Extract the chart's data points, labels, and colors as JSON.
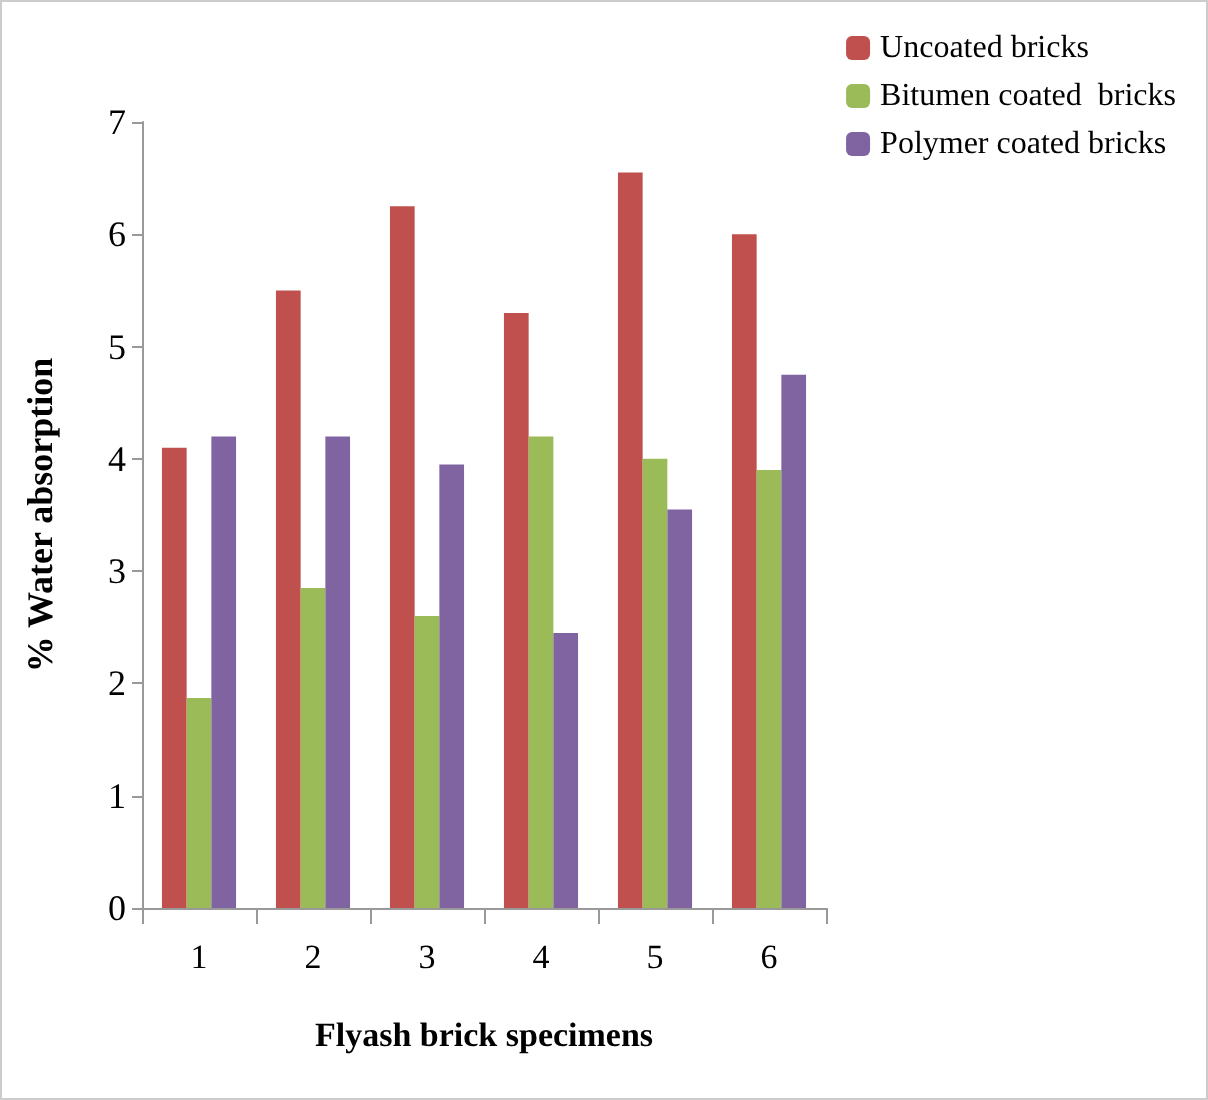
{
  "chart_data": {
    "type": "bar",
    "xlabel": "Flyash brick specimens",
    "ylabel": "% Water absorption",
    "categories": [
      "1",
      "2",
      "3",
      "4",
      "5",
      "6"
    ],
    "series": [
      {
        "name": "Uncoated bricks",
        "color": "#c0504d",
        "values": [
          4.1,
          5.5,
          6.25,
          5.3,
          6.55,
          6.0
        ]
      },
      {
        "name": "Bitumen coated  bricks",
        "color": "#9bbb59",
        "values": [
          1.87,
          2.85,
          2.6,
          4.2,
          4.0,
          3.9
        ]
      },
      {
        "name": "Polymer coated bricks",
        "color": "#8064a2",
        "values": [
          4.2,
          4.2,
          3.95,
          2.45,
          3.55,
          4.75
        ]
      }
    ],
    "ylim": [
      0,
      7
    ],
    "yticks": [
      0,
      1,
      2,
      3,
      4,
      5,
      6,
      7
    ],
    "grid": false,
    "legend": "top right"
  }
}
